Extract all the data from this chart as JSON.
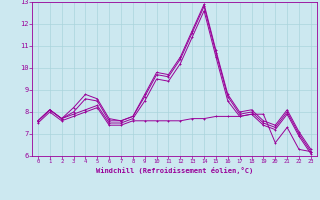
{
  "xlabel": "Windchill (Refroidissement éolien,°C)",
  "bg_color": "#cce8f0",
  "grid_color": "#aad4dc",
  "line_color": "#990099",
  "xlim": [
    -0.5,
    23.5
  ],
  "ylim": [
    6,
    13
  ],
  "yticks": [
    6,
    7,
    8,
    9,
    10,
    11,
    12,
    13
  ],
  "xticks": [
    0,
    1,
    2,
    3,
    4,
    5,
    6,
    7,
    8,
    9,
    10,
    11,
    12,
    13,
    14,
    15,
    16,
    17,
    18,
    19,
    20,
    21,
    22,
    23
  ],
  "series": [
    [
      7.6,
      8.1,
      7.7,
      8.0,
      8.6,
      8.5,
      7.6,
      7.6,
      7.8,
      8.7,
      9.7,
      9.6,
      10.4,
      11.6,
      12.8,
      10.7,
      8.7,
      7.9,
      8.0,
      7.5,
      7.3,
      8.0,
      7.0,
      6.2
    ],
    [
      7.6,
      8.1,
      7.7,
      7.9,
      8.1,
      8.3,
      7.5,
      7.5,
      7.7,
      8.5,
      9.5,
      9.4,
      10.2,
      11.4,
      12.6,
      10.5,
      8.5,
      7.8,
      7.9,
      7.4,
      7.2,
      7.9,
      6.9,
      6.1
    ],
    [
      7.6,
      8.1,
      7.7,
      8.2,
      8.8,
      8.6,
      7.7,
      7.6,
      7.8,
      8.8,
      9.8,
      9.7,
      10.5,
      11.7,
      12.9,
      10.8,
      8.8,
      8.0,
      8.1,
      7.6,
      7.4,
      8.1,
      7.1,
      6.3
    ],
    [
      7.5,
      8.0,
      7.6,
      7.8,
      8.0,
      8.2,
      7.4,
      7.4,
      7.6,
      7.6,
      7.6,
      7.6,
      7.6,
      7.7,
      7.7,
      7.8,
      7.8,
      7.8,
      7.9,
      7.9,
      6.6,
      7.3,
      6.3,
      6.2
    ]
  ]
}
